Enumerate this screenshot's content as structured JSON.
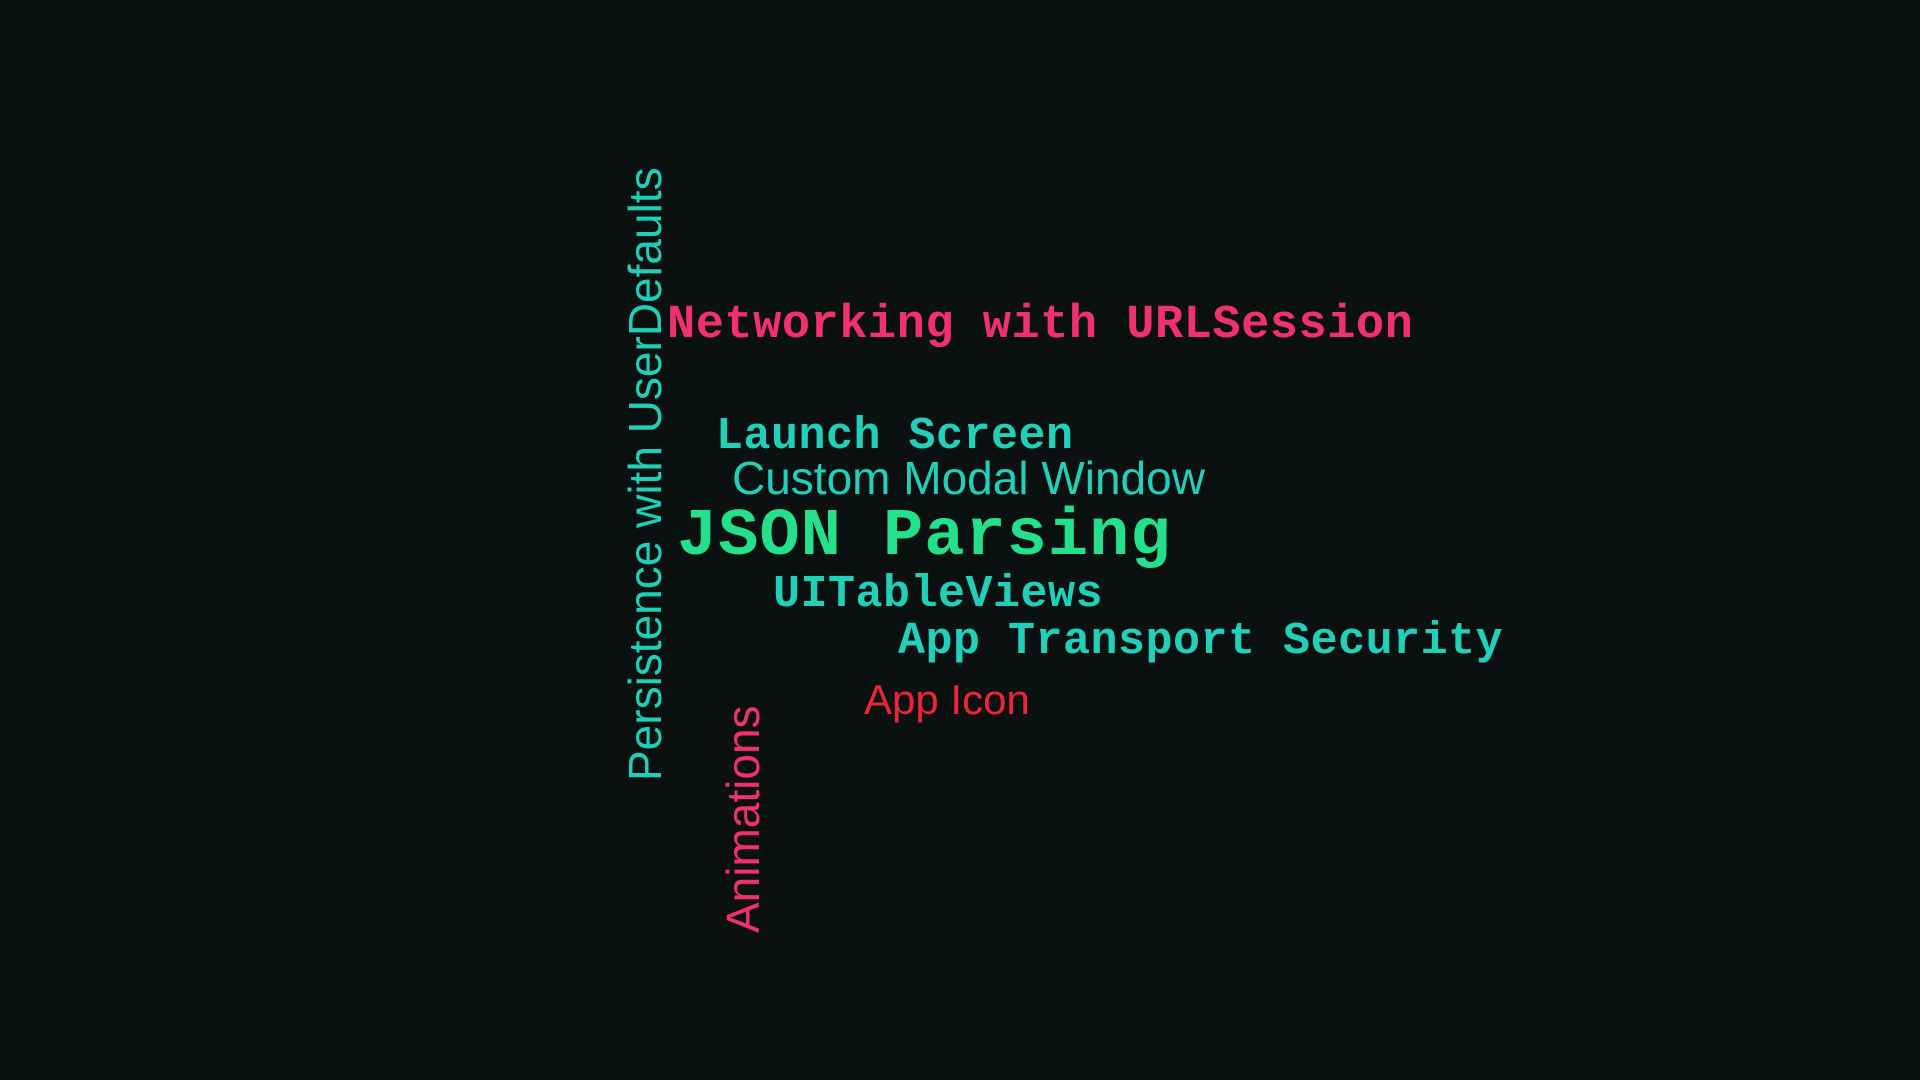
{
  "word_cloud": {
    "background": "#0a1110",
    "words": {
      "networking": {
        "text": "Networking with URLSession",
        "color": "#f0306f"
      },
      "persistence": {
        "text": "Persistence with UserDefaults",
        "color": "#1fcfb8"
      },
      "launch_screen": {
        "text": "Launch Screen",
        "color": "#22d0b9"
      },
      "custom_modal": {
        "text": "Custom Modal Window",
        "color": "#22d0b9"
      },
      "json_parsing": {
        "text": "JSON Parsing",
        "color": "#25e08a"
      },
      "tableviews": {
        "text": "UITableViews",
        "color": "#22d0b9"
      },
      "app_transport": {
        "text": "App Transport Security",
        "color": "#22d0b9"
      },
      "app_icon": {
        "text": "App Icon",
        "color": "#ee2438"
      },
      "animations": {
        "text": "Animations",
        "color": "#f0306f"
      }
    }
  }
}
